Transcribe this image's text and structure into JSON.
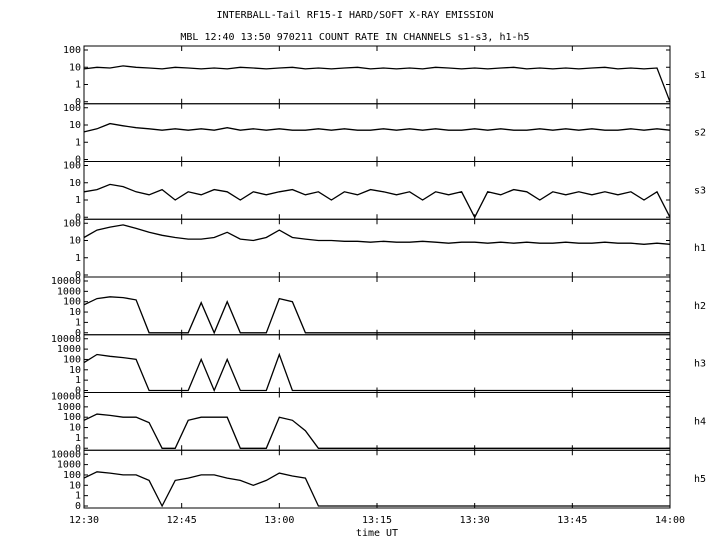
{
  "title": "INTERBALL-Tail RF15-I HARD/SOFT X-RAY EMISSION",
  "subtitle": "MBL 12:40 13:50 970211  COUNT RATE IN CHANNELS s1-s3, h1-h5",
  "chart_data": [
    {
      "type": "line",
      "log_scale": true,
      "xlim": [
        "12:30",
        "14:00"
      ],
      "ylim": [
        0,
        100
      ],
      "yticks": [
        0,
        1,
        10,
        100
      ],
      "x": [
        "12:30",
        "12:32",
        "12:34",
        "12:36",
        "12:38",
        "12:40",
        "12:42",
        "12:44",
        "12:46",
        "12:48",
        "12:50",
        "12:52",
        "12:54",
        "12:56",
        "12:58",
        "13:00",
        "13:02",
        "13:04",
        "13:06",
        "13:08",
        "13:10",
        "13:12",
        "13:14",
        "13:16",
        "13:18",
        "13:20",
        "13:22",
        "13:24",
        "13:26",
        "13:28",
        "13:30",
        "13:32",
        "13:34",
        "13:36",
        "13:38",
        "13:40",
        "13:42",
        "13:44",
        "13:46",
        "13:48",
        "13:50",
        "13:52",
        "13:54",
        "13:56",
        "13:58",
        "14:00"
      ],
      "series": [
        {
          "name": "s1",
          "color": "#000000",
          "values": [
            8,
            10,
            9,
            12,
            10,
            9,
            8,
            10,
            9,
            8,
            9,
            8,
            10,
            9,
            8,
            9,
            10,
            8,
            9,
            8,
            9,
            10,
            8,
            9,
            8,
            9,
            8,
            10,
            9,
            8,
            9,
            8,
            9,
            10,
            8,
            9,
            8,
            9,
            8,
            9,
            10,
            8,
            9,
            8,
            9,
            0
          ]
        }
      ]
    },
    {
      "type": "line",
      "log_scale": true,
      "xlim": [
        "12:30",
        "14:00"
      ],
      "ylim": [
        0,
        100
      ],
      "yticks": [
        0,
        1,
        10,
        100
      ],
      "x": [
        "12:30",
        "12:32",
        "12:34",
        "12:36",
        "12:38",
        "12:40",
        "12:42",
        "12:44",
        "12:46",
        "12:48",
        "12:50",
        "12:52",
        "12:54",
        "12:56",
        "12:58",
        "13:00",
        "13:02",
        "13:04",
        "13:06",
        "13:08",
        "13:10",
        "13:12",
        "13:14",
        "13:16",
        "13:18",
        "13:20",
        "13:22",
        "13:24",
        "13:26",
        "13:28",
        "13:30",
        "13:32",
        "13:34",
        "13:36",
        "13:38",
        "13:40",
        "13:42",
        "13:44",
        "13:46",
        "13:48",
        "13:50",
        "13:52",
        "13:54",
        "13:56",
        "13:58",
        "14:00"
      ],
      "series": [
        {
          "name": "s2",
          "color": "#000000",
          "values": [
            4,
            6,
            12,
            9,
            7,
            6,
            5,
            6,
            5,
            6,
            5,
            7,
            5,
            6,
            5,
            6,
            5,
            5,
            6,
            5,
            6,
            5,
            5,
            6,
            5,
            6,
            5,
            6,
            5,
            5,
            6,
            5,
            6,
            5,
            5,
            6,
            5,
            6,
            5,
            6,
            5,
            5,
            6,
            5,
            6,
            5
          ]
        }
      ]
    },
    {
      "type": "line",
      "log_scale": true,
      "xlim": [
        "12:30",
        "14:00"
      ],
      "ylim": [
        0,
        100
      ],
      "yticks": [
        0,
        1,
        10,
        100
      ],
      "x": [
        "12:30",
        "12:32",
        "12:34",
        "12:36",
        "12:38",
        "12:40",
        "12:42",
        "12:44",
        "12:46",
        "12:48",
        "12:50",
        "12:52",
        "12:54",
        "12:56",
        "12:58",
        "13:00",
        "13:02",
        "13:04",
        "13:06",
        "13:08",
        "13:10",
        "13:12",
        "13:14",
        "13:16",
        "13:18",
        "13:20",
        "13:22",
        "13:24",
        "13:26",
        "13:28",
        "13:30",
        "13:32",
        "13:34",
        "13:36",
        "13:38",
        "13:40",
        "13:42",
        "13:44",
        "13:46",
        "13:48",
        "13:50",
        "13:52",
        "13:54",
        "13:56",
        "13:58",
        "14:00"
      ],
      "series": [
        {
          "name": "s3",
          "color": "#000000",
          "values": [
            3,
            4,
            8,
            6,
            3,
            2,
            4,
            1,
            3,
            2,
            4,
            3,
            1,
            3,
            2,
            3,
            4,
            2,
            3,
            1,
            3,
            2,
            4,
            3,
            2,
            3,
            1,
            3,
            2,
            3,
            0,
            3,
            2,
            4,
            3,
            1,
            3,
            2,
            3,
            2,
            3,
            2,
            3,
            1,
            3,
            0
          ]
        }
      ]
    },
    {
      "type": "line",
      "log_scale": true,
      "xlim": [
        "12:30",
        "14:00"
      ],
      "ylim": [
        0,
        100
      ],
      "yticks": [
        0,
        1,
        10,
        100
      ],
      "x": [
        "12:30",
        "12:32",
        "12:34",
        "12:36",
        "12:38",
        "12:40",
        "12:42",
        "12:44",
        "12:46",
        "12:48",
        "12:50",
        "12:52",
        "12:54",
        "12:56",
        "12:58",
        "13:00",
        "13:02",
        "13:04",
        "13:06",
        "13:08",
        "13:10",
        "13:12",
        "13:14",
        "13:16",
        "13:18",
        "13:20",
        "13:22",
        "13:24",
        "13:26",
        "13:28",
        "13:30",
        "13:32",
        "13:34",
        "13:36",
        "13:38",
        "13:40",
        "13:42",
        "13:44",
        "13:46",
        "13:48",
        "13:50",
        "13:52",
        "13:54",
        "13:56",
        "13:58",
        "14:00"
      ],
      "series": [
        {
          "name": "h1",
          "color": "#000000",
          "values": [
            15,
            40,
            60,
            80,
            50,
            30,
            20,
            15,
            12,
            12,
            15,
            30,
            12,
            10,
            15,
            40,
            15,
            12,
            10,
            10,
            9,
            9,
            8,
            9,
            8,
            8,
            9,
            8,
            7,
            8,
            8,
            7,
            8,
            7,
            8,
            7,
            7,
            8,
            7,
            7,
            8,
            7,
            7,
            6,
            7,
            6
          ]
        }
      ]
    },
    {
      "type": "line",
      "log_scale": true,
      "xlim": [
        "12:30",
        "14:00"
      ],
      "ylim": [
        0,
        10000
      ],
      "yticks": [
        0,
        1,
        10,
        100,
        1000,
        10000
      ],
      "x": [
        "12:30",
        "12:32",
        "12:34",
        "12:36",
        "12:38",
        "12:40",
        "12:42",
        "12:44",
        "12:46",
        "12:48",
        "12:50",
        "12:52",
        "12:54",
        "12:56",
        "12:58",
        "13:00",
        "13:02",
        "13:04",
        "13:06",
        "13:08",
        "13:10",
        "13:12",
        "13:14",
        "13:16",
        "13:18",
        "13:20",
        "13:22",
        "13:24",
        "13:26",
        "13:28",
        "13:30",
        "13:32",
        "13:34",
        "13:36",
        "13:38",
        "13:40",
        "13:42",
        "13:44",
        "13:46",
        "13:48",
        "13:50",
        "13:52",
        "13:54",
        "13:56",
        "13:58",
        "14:00"
      ],
      "series": [
        {
          "name": "h2",
          "color": "#000000",
          "values": [
            50,
            200,
            300,
            250,
            150,
            0,
            0,
            0,
            0,
            80,
            0,
            100,
            0,
            0,
            0,
            200,
            100,
            0,
            0,
            0,
            0,
            0,
            0,
            0,
            0,
            0,
            0,
            0,
            0,
            0,
            0,
            0,
            0,
            0,
            0,
            0,
            0,
            0,
            0,
            0,
            0,
            0,
            0,
            0,
            0,
            0
          ]
        }
      ]
    },
    {
      "type": "line",
      "log_scale": true,
      "xlim": [
        "12:30",
        "14:00"
      ],
      "ylim": [
        0,
        10000
      ],
      "yticks": [
        0,
        1,
        10,
        100,
        1000,
        10000
      ],
      "x": [
        "12:30",
        "12:32",
        "12:34",
        "12:36",
        "12:38",
        "12:40",
        "12:42",
        "12:44",
        "12:46",
        "12:48",
        "12:50",
        "12:52",
        "12:54",
        "12:56",
        "12:58",
        "13:00",
        "13:02",
        "13:04",
        "13:06",
        "13:08",
        "13:10",
        "13:12",
        "13:14",
        "13:16",
        "13:18",
        "13:20",
        "13:22",
        "13:24",
        "13:26",
        "13:28",
        "13:30",
        "13:32",
        "13:34",
        "13:36",
        "13:38",
        "13:40",
        "13:42",
        "13:44",
        "13:46",
        "13:48",
        "13:50",
        "13:52",
        "13:54",
        "13:56",
        "13:58",
        "14:00"
      ],
      "series": [
        {
          "name": "h3",
          "color": "#000000",
          "values": [
            50,
            300,
            200,
            150,
            100,
            0,
            0,
            0,
            0,
            100,
            0,
            100,
            0,
            0,
            0,
            300,
            0,
            0,
            0,
            0,
            0,
            0,
            0,
            0,
            0,
            0,
            0,
            0,
            0,
            0,
            0,
            0,
            0,
            0,
            0,
            0,
            0,
            0,
            0,
            0,
            0,
            0,
            0,
            0,
            0,
            0
          ]
        }
      ]
    },
    {
      "type": "line",
      "log_scale": true,
      "xlim": [
        "12:30",
        "14:00"
      ],
      "ylim": [
        0,
        10000
      ],
      "yticks": [
        0,
        1,
        10,
        100,
        1000,
        10000
      ],
      "x": [
        "12:30",
        "12:32",
        "12:34",
        "12:36",
        "12:38",
        "12:40",
        "12:42",
        "12:44",
        "12:46",
        "12:48",
        "12:50",
        "12:52",
        "12:54",
        "12:56",
        "12:58",
        "13:00",
        "13:02",
        "13:04",
        "13:06",
        "13:08",
        "13:10",
        "13:12",
        "13:14",
        "13:16",
        "13:18",
        "13:20",
        "13:22",
        "13:24",
        "13:26",
        "13:28",
        "13:30",
        "13:32",
        "13:34",
        "13:36",
        "13:38",
        "13:40",
        "13:42",
        "13:44",
        "13:46",
        "13:48",
        "13:50",
        "13:52",
        "13:54",
        "13:56",
        "13:58",
        "14:00"
      ],
      "series": [
        {
          "name": "h4",
          "color": "#000000",
          "values": [
            50,
            200,
            150,
            100,
            100,
            30,
            0,
            0,
            50,
            100,
            100,
            100,
            0,
            0,
            0,
            100,
            50,
            5,
            0,
            0,
            0,
            0,
            0,
            0,
            0,
            0,
            0,
            0,
            0,
            0,
            0,
            0,
            0,
            0,
            0,
            0,
            0,
            0,
            0,
            0,
            0,
            0,
            0,
            0,
            0,
            0
          ]
        }
      ]
    },
    {
      "type": "line",
      "log_scale": true,
      "xlim": [
        "12:30",
        "14:00"
      ],
      "ylim": [
        0,
        10000
      ],
      "yticks": [
        0,
        1,
        10,
        100,
        1000,
        10000
      ],
      "x": [
        "12:30",
        "12:32",
        "12:34",
        "12:36",
        "12:38",
        "12:40",
        "12:42",
        "12:44",
        "12:46",
        "12:48",
        "12:50",
        "12:52",
        "12:54",
        "12:56",
        "12:58",
        "13:00",
        "13:02",
        "13:04",
        "13:06",
        "13:08",
        "13:10",
        "13:12",
        "13:14",
        "13:16",
        "13:18",
        "13:20",
        "13:22",
        "13:24",
        "13:26",
        "13:28",
        "13:30",
        "13:32",
        "13:34",
        "13:36",
        "13:38",
        "13:40",
        "13:42",
        "13:44",
        "13:46",
        "13:48",
        "13:50",
        "13:52",
        "13:54",
        "13:56",
        "13:58",
        "14:00"
      ],
      "xticks": [
        "12:30",
        "12:45",
        "13:00",
        "13:15",
        "13:30",
        "13:45",
        "14:00"
      ],
      "x_label": "time UT",
      "series": [
        {
          "name": "h5",
          "color": "#000000",
          "values": [
            50,
            200,
            150,
            100,
            100,
            30,
            0,
            30,
            50,
            100,
            100,
            50,
            30,
            10,
            30,
            150,
            80,
            50,
            0,
            0,
            0,
            0,
            0,
            0,
            0,
            0,
            0,
            0,
            0,
            0,
            0,
            0,
            0,
            0,
            0,
            0,
            0,
            0,
            0,
            0,
            0,
            0,
            0,
            0,
            0,
            0
          ]
        }
      ]
    }
  ]
}
